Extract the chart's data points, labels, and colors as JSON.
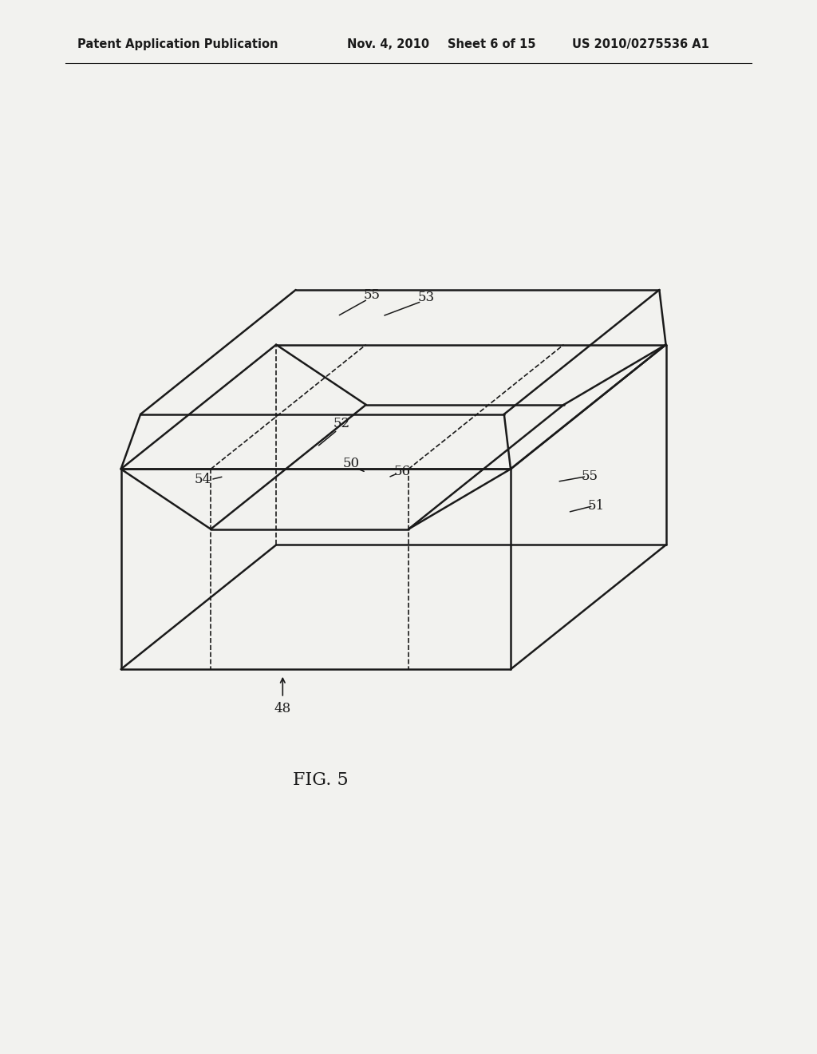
{
  "bg_color": "#f2f2ef",
  "line_color": "#1a1a1a",
  "header_text": "Patent Application Publication",
  "header_date": "Nov. 4, 2010",
  "header_sheet": "Sheet 6 of 15",
  "header_patent": "US 2010/0275536 A1",
  "fig_label": "FIG. 5",
  "lw_main": 1.8,
  "lw_dashed": 1.2,
  "lw_thin": 0.8
}
